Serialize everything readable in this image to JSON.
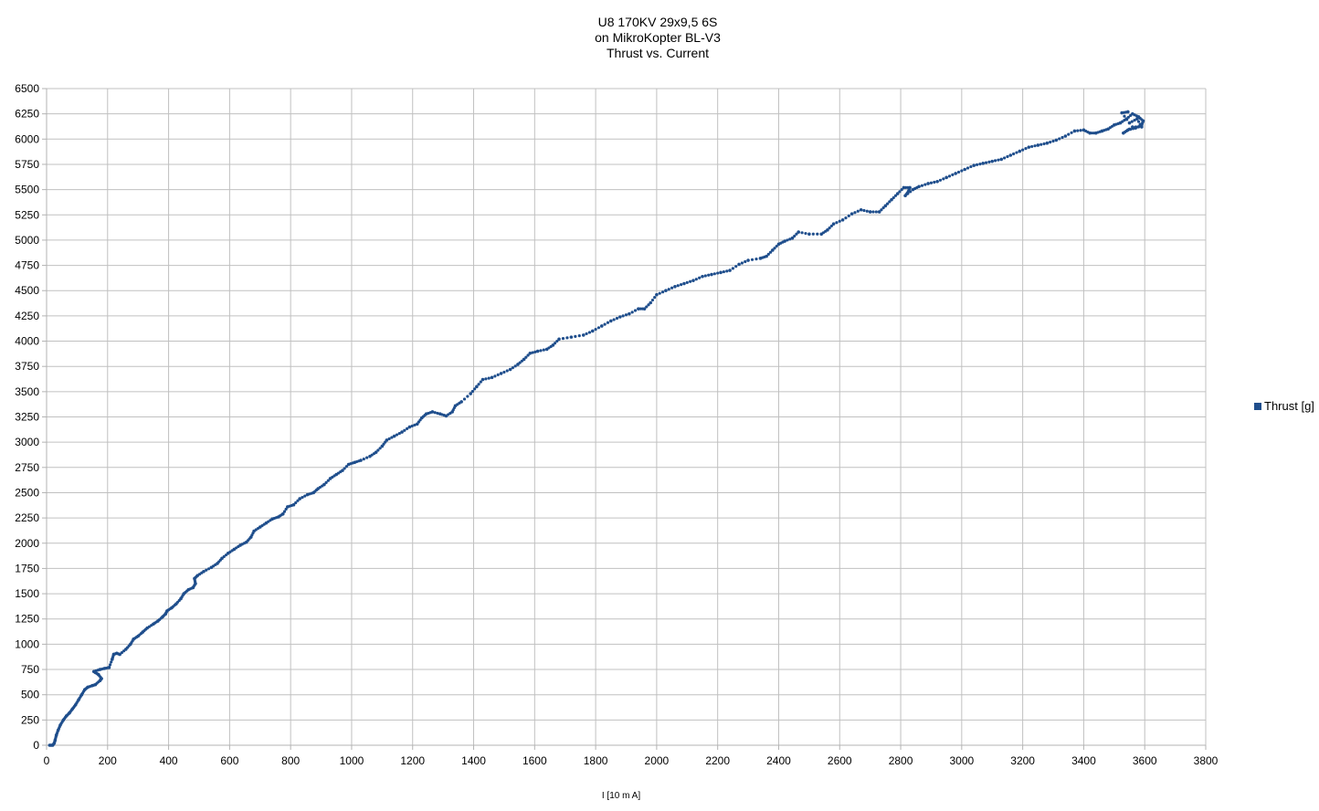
{
  "chart_data": {
    "type": "scatter",
    "title": [
      "U8 170KV 29x9,5 6S",
      "on MikroKopter BL-V3",
      "Thrust vs. Current"
    ],
    "xlabel": "I [10 m A]",
    "ylabel": "",
    "xlim": [
      0,
      3800
    ],
    "ylim": [
      0,
      6500
    ],
    "xticks": [
      0,
      200,
      400,
      600,
      800,
      1000,
      1200,
      1400,
      1600,
      1800,
      2000,
      2200,
      2400,
      2600,
      2800,
      3000,
      3200,
      3400,
      3600,
      3800
    ],
    "yticks": [
      0,
      250,
      500,
      750,
      1000,
      1250,
      1500,
      1750,
      2000,
      2250,
      2500,
      2750,
      3000,
      3250,
      3500,
      3750,
      4000,
      4250,
      4500,
      4750,
      5000,
      5250,
      5500,
      5750,
      6000,
      6250,
      6500
    ],
    "grid": true,
    "legend_position": "right",
    "series": [
      {
        "name": "Thrust [g]",
        "color": "#1f4e8c",
        "points": [
          [
            10,
            0
          ],
          [
            15,
            0
          ],
          [
            20,
            0
          ],
          [
            25,
            20
          ],
          [
            28,
            50
          ],
          [
            32,
            100
          ],
          [
            38,
            150
          ],
          [
            45,
            200
          ],
          [
            55,
            250
          ],
          [
            65,
            290
          ],
          [
            75,
            320
          ],
          [
            85,
            360
          ],
          [
            95,
            400
          ],
          [
            105,
            450
          ],
          [
            115,
            500
          ],
          [
            125,
            550
          ],
          [
            135,
            575
          ],
          [
            150,
            590
          ],
          [
            160,
            600
          ],
          [
            175,
            640
          ],
          [
            180,
            660
          ],
          [
            170,
            700
          ],
          [
            160,
            720
          ],
          [
            155,
            730
          ],
          [
            175,
            750
          ],
          [
            190,
            760
          ],
          [
            205,
            770
          ],
          [
            215,
            850
          ],
          [
            220,
            900
          ],
          [
            230,
            910
          ],
          [
            240,
            900
          ],
          [
            260,
            950
          ],
          [
            275,
            1000
          ],
          [
            285,
            1050
          ],
          [
            300,
            1080
          ],
          [
            315,
            1120
          ],
          [
            330,
            1160
          ],
          [
            350,
            1200
          ],
          [
            365,
            1230
          ],
          [
            380,
            1270
          ],
          [
            390,
            1300
          ],
          [
            395,
            1330
          ],
          [
            410,
            1360
          ],
          [
            425,
            1400
          ],
          [
            440,
            1450
          ],
          [
            450,
            1500
          ],
          [
            465,
            1540
          ],
          [
            480,
            1560
          ],
          [
            488,
            1600
          ],
          [
            485,
            1650
          ],
          [
            495,
            1680
          ],
          [
            515,
            1720
          ],
          [
            540,
            1760
          ],
          [
            560,
            1800
          ],
          [
            575,
            1850
          ],
          [
            595,
            1900
          ],
          [
            615,
            1940
          ],
          [
            635,
            1980
          ],
          [
            655,
            2010
          ],
          [
            670,
            2060
          ],
          [
            680,
            2120
          ],
          [
            700,
            2160
          ],
          [
            720,
            2200
          ],
          [
            740,
            2240
          ],
          [
            760,
            2260
          ],
          [
            775,
            2290
          ],
          [
            790,
            2360
          ],
          [
            810,
            2380
          ],
          [
            830,
            2440
          ],
          [
            855,
            2480
          ],
          [
            875,
            2500
          ],
          [
            890,
            2540
          ],
          [
            910,
            2580
          ],
          [
            930,
            2640
          ],
          [
            950,
            2680
          ],
          [
            970,
            2720
          ],
          [
            990,
            2780
          ],
          [
            1010,
            2800
          ],
          [
            1030,
            2820
          ],
          [
            1060,
            2860
          ],
          [
            1080,
            2900
          ],
          [
            1100,
            2960
          ],
          [
            1115,
            3020
          ],
          [
            1140,
            3060
          ],
          [
            1165,
            3100
          ],
          [
            1190,
            3150
          ],
          [
            1215,
            3180
          ],
          [
            1230,
            3240
          ],
          [
            1245,
            3280
          ],
          [
            1265,
            3300
          ],
          [
            1290,
            3280
          ],
          [
            1310,
            3260
          ],
          [
            1330,
            3300
          ],
          [
            1340,
            3360
          ],
          [
            1360,
            3400
          ],
          [
            1390,
            3480
          ],
          [
            1410,
            3550
          ],
          [
            1430,
            3620
          ],
          [
            1460,
            3640
          ],
          [
            1490,
            3680
          ],
          [
            1520,
            3720
          ],
          [
            1545,
            3770
          ],
          [
            1565,
            3820
          ],
          [
            1585,
            3880
          ],
          [
            1610,
            3900
          ],
          [
            1640,
            3920
          ],
          [
            1660,
            3960
          ],
          [
            1680,
            4020
          ],
          [
            1720,
            4040
          ],
          [
            1760,
            4060
          ],
          [
            1790,
            4100
          ],
          [
            1820,
            4150
          ],
          [
            1850,
            4200
          ],
          [
            1880,
            4240
          ],
          [
            1910,
            4270
          ],
          [
            1940,
            4320
          ],
          [
            1960,
            4320
          ],
          [
            1980,
            4380
          ],
          [
            2000,
            4460
          ],
          [
            2030,
            4500
          ],
          [
            2060,
            4540
          ],
          [
            2090,
            4570
          ],
          [
            2120,
            4600
          ],
          [
            2150,
            4640
          ],
          [
            2180,
            4660
          ],
          [
            2210,
            4680
          ],
          [
            2240,
            4700
          ],
          [
            2270,
            4760
          ],
          [
            2300,
            4800
          ],
          [
            2340,
            4820
          ],
          [
            2360,
            4840
          ],
          [
            2380,
            4900
          ],
          [
            2400,
            4960
          ],
          [
            2420,
            4990
          ],
          [
            2445,
            5020
          ],
          [
            2465,
            5080
          ],
          [
            2500,
            5060
          ],
          [
            2540,
            5060
          ],
          [
            2560,
            5100
          ],
          [
            2580,
            5160
          ],
          [
            2610,
            5200
          ],
          [
            2640,
            5260
          ],
          [
            2670,
            5300
          ],
          [
            2700,
            5280
          ],
          [
            2730,
            5280
          ],
          [
            2750,
            5340
          ],
          [
            2770,
            5400
          ],
          [
            2790,
            5460
          ],
          [
            2810,
            5520
          ],
          [
            2830,
            5520
          ],
          [
            2825,
            5480
          ],
          [
            2815,
            5440
          ],
          [
            2840,
            5500
          ],
          [
            2860,
            5530
          ],
          [
            2890,
            5560
          ],
          [
            2920,
            5580
          ],
          [
            2950,
            5620
          ],
          [
            2980,
            5660
          ],
          [
            3010,
            5700
          ],
          [
            3040,
            5740
          ],
          [
            3070,
            5760
          ],
          [
            3100,
            5780
          ],
          [
            3130,
            5800
          ],
          [
            3160,
            5840
          ],
          [
            3190,
            5880
          ],
          [
            3220,
            5920
          ],
          [
            3250,
            5940
          ],
          [
            3280,
            5960
          ],
          [
            3310,
            5990
          ],
          [
            3340,
            6030
          ],
          [
            3370,
            6080
          ],
          [
            3400,
            6090
          ],
          [
            3420,
            6060
          ],
          [
            3440,
            6060
          ],
          [
            3460,
            6080
          ],
          [
            3480,
            6100
          ],
          [
            3500,
            6140
          ],
          [
            3520,
            6160
          ],
          [
            3540,
            6200
          ],
          [
            3560,
            6250
          ],
          [
            3580,
            6220
          ],
          [
            3595,
            6180
          ],
          [
            3590,
            6140
          ],
          [
            3570,
            6110
          ],
          [
            3545,
            6090
          ],
          [
            3530,
            6060
          ],
          [
            3560,
            6120
          ],
          [
            3590,
            6120
          ],
          [
            3575,
            6200
          ],
          [
            3550,
            6160
          ],
          [
            3525,
            6260
          ],
          [
            3545,
            6270
          ]
        ]
      }
    ]
  }
}
